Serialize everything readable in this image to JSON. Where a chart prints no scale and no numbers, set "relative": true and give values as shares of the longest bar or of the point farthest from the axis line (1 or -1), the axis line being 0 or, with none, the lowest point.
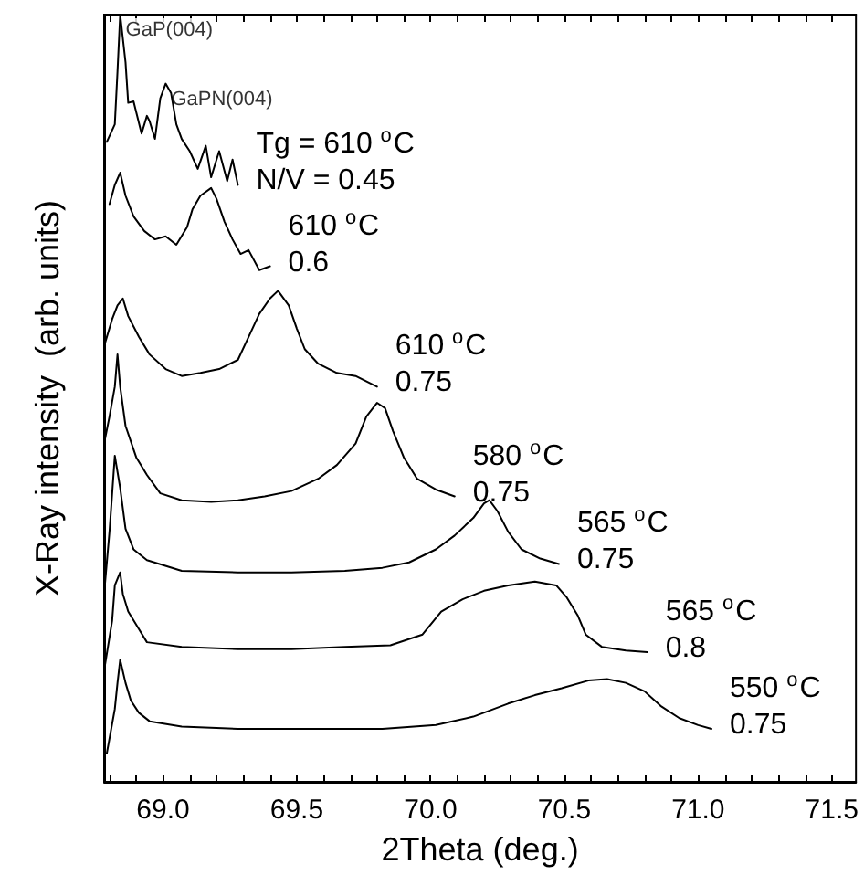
{
  "chart_data": {
    "type": "line",
    "relative": true,
    "xlabel": "2Theta (deg.)",
    "ylabel": "X-Ray intensity  (arb. units)",
    "xlim": [
      68.78,
      71.59
    ],
    "xticks": [
      {
        "value": 68.8,
        "label": null
      },
      {
        "value": 68.9,
        "label": null
      },
      {
        "value": 69.0,
        "label": "69.0"
      },
      {
        "value": 69.1,
        "label": null
      },
      {
        "value": 69.2,
        "label": null
      },
      {
        "value": 69.3,
        "label": null
      },
      {
        "value": 69.4,
        "label": null
      },
      {
        "value": 69.5,
        "label": "69.5"
      },
      {
        "value": 69.6,
        "label": null
      },
      {
        "value": 69.7,
        "label": null
      },
      {
        "value": 69.8,
        "label": null
      },
      {
        "value": 69.9,
        "label": null
      },
      {
        "value": 70.0,
        "label": "70.0"
      },
      {
        "value": 70.1,
        "label": null
      },
      {
        "value": 70.2,
        "label": null
      },
      {
        "value": 70.3,
        "label": null
      },
      {
        "value": 70.4,
        "label": null
      },
      {
        "value": 70.5,
        "label": "70.5"
      },
      {
        "value": 70.6,
        "label": null
      },
      {
        "value": 70.7,
        "label": null
      },
      {
        "value": 70.8,
        "label": null
      },
      {
        "value": 70.9,
        "label": null
      },
      {
        "value": 71.0,
        "label": "71.0"
      },
      {
        "value": 71.1,
        "label": null
      },
      {
        "value": 71.2,
        "label": null
      },
      {
        "value": 71.3,
        "label": null
      },
      {
        "value": 71.4,
        "label": null
      },
      {
        "value": 71.5,
        "label": "71.5"
      }
    ],
    "tick_labels": "x",
    "grid": false,
    "legend": false,
    "marker": "none",
    "annotations": [
      {
        "text": "GaP(004)",
        "x": 68.84,
        "y": 1.0
      },
      {
        "text": "GaPN(004)",
        "x": 69.01,
        "y": 0.91
      }
    ],
    "series": [
      {
        "name": "Tg = 610 $^{o}$C\nN/V = 0.45",
        "color": "#000000",
        "x": [
          68.79,
          68.82,
          68.83,
          68.84,
          68.86,
          68.87,
          68.89,
          68.92,
          68.94,
          68.95,
          68.97,
          68.99,
          69.01,
          69.03,
          69.05,
          69.07,
          69.1,
          69.13,
          69.16,
          69.18,
          69.21,
          69.24,
          69.26,
          69.28
        ],
        "values": [
          0.834,
          0.857,
          0.926,
          1.0,
          0.938,
          0.885,
          0.887,
          0.845,
          0.868,
          0.861,
          0.838,
          0.891,
          0.91,
          0.898,
          0.857,
          0.838,
          0.822,
          0.799,
          0.829,
          0.788,
          0.822,
          0.783,
          0.811,
          0.778
        ]
      },
      {
        "name": "610 $^{o}$C\n0.6",
        "color": "#000000",
        "x": [
          68.8,
          68.82,
          68.84,
          68.86,
          68.89,
          68.93,
          68.97,
          69.01,
          69.05,
          69.09,
          69.11,
          69.14,
          69.18,
          69.2,
          69.23,
          69.26,
          69.29,
          69.32,
          69.36,
          69.4
        ],
        "values": [
          0.753,
          0.778,
          0.794,
          0.764,
          0.737,
          0.718,
          0.707,
          0.711,
          0.7,
          0.723,
          0.746,
          0.764,
          0.774,
          0.76,
          0.73,
          0.707,
          0.688,
          0.693,
          0.667,
          0.672
        ]
      },
      {
        "name": "610 $^{o}$C\n0.75",
        "color": "#000000",
        "x": [
          68.78,
          68.81,
          68.83,
          68.85,
          68.87,
          68.91,
          68.95,
          69.01,
          69.07,
          69.14,
          69.21,
          69.28,
          69.32,
          69.36,
          69.4,
          69.43,
          69.47,
          69.5,
          69.53,
          69.58,
          69.65,
          69.72,
          69.8
        ],
        "values": [
          0.568,
          0.603,
          0.621,
          0.63,
          0.607,
          0.58,
          0.557,
          0.538,
          0.529,
          0.533,
          0.538,
          0.55,
          0.58,
          0.61,
          0.63,
          0.64,
          0.621,
          0.591,
          0.564,
          0.545,
          0.533,
          0.529,
          0.515
        ]
      },
      {
        "name": "580 $^{o}$C\n0.75",
        "color": "#000000",
        "x": [
          68.78,
          68.8,
          68.82,
          68.83,
          68.84,
          68.86,
          68.9,
          68.94,
          68.99,
          69.07,
          69.18,
          69.28,
          69.38,
          69.48,
          69.58,
          69.65,
          69.72,
          69.76,
          69.8,
          69.83,
          69.86,
          69.9,
          69.95,
          70.02,
          70.09
        ],
        "values": [
          0.441,
          0.476,
          0.515,
          0.557,
          0.515,
          0.464,
          0.423,
          0.4,
          0.376,
          0.367,
          0.365,
          0.367,
          0.372,
          0.379,
          0.395,
          0.413,
          0.441,
          0.476,
          0.494,
          0.487,
          0.457,
          0.423,
          0.395,
          0.381,
          0.372
        ]
      },
      {
        "name": "565 $^{o}$C\n0.75",
        "color": "#000000",
        "x": [
          68.78,
          68.8,
          68.82,
          68.84,
          68.86,
          68.89,
          68.94,
          69.07,
          69.28,
          69.48,
          69.68,
          69.82,
          69.92,
          70.02,
          70.09,
          70.16,
          70.2,
          70.22,
          70.25,
          70.29,
          70.34,
          70.41,
          70.48
        ],
        "values": [
          0.245,
          0.326,
          0.425,
          0.383,
          0.33,
          0.303,
          0.289,
          0.275,
          0.273,
          0.273,
          0.275,
          0.279,
          0.286,
          0.303,
          0.321,
          0.344,
          0.363,
          0.367,
          0.353,
          0.326,
          0.303,
          0.291,
          0.284
        ]
      },
      {
        "name": "565 $^{o}$C\n0.8",
        "color": "#000000",
        "x": [
          68.78,
          68.81,
          68.82,
          68.84,
          68.85,
          68.87,
          68.91,
          68.94,
          69.07,
          69.28,
          69.48,
          69.68,
          69.85,
          69.97,
          70.04,
          70.12,
          70.2,
          70.29,
          70.39,
          70.47,
          70.51,
          70.55,
          70.58,
          70.64,
          70.73,
          70.81
        ],
        "values": [
          0.145,
          0.21,
          0.256,
          0.273,
          0.245,
          0.222,
          0.199,
          0.182,
          0.176,
          0.173,
          0.173,
          0.176,
          0.178,
          0.192,
          0.222,
          0.238,
          0.249,
          0.256,
          0.261,
          0.256,
          0.24,
          0.217,
          0.192,
          0.176,
          0.171,
          0.169
        ]
      },
      {
        "name": "550 $^{o}$C\n0.75",
        "color": "#000000",
        "x": [
          68.79,
          68.82,
          68.83,
          68.84,
          68.86,
          68.88,
          68.91,
          68.95,
          69.07,
          69.28,
          69.55,
          69.82,
          70.02,
          70.16,
          70.29,
          70.39,
          70.49,
          70.59,
          70.66,
          70.73,
          70.8,
          70.86,
          70.93,
          71.0,
          71.05
        ],
        "values": [
          0.037,
          0.095,
          0.129,
          0.159,
          0.129,
          0.106,
          0.09,
          0.079,
          0.072,
          0.069,
          0.069,
          0.069,
          0.074,
          0.085,
          0.102,
          0.113,
          0.122,
          0.132,
          0.134,
          0.129,
          0.118,
          0.099,
          0.083,
          0.074,
          0.069
        ]
      }
    ]
  }
}
